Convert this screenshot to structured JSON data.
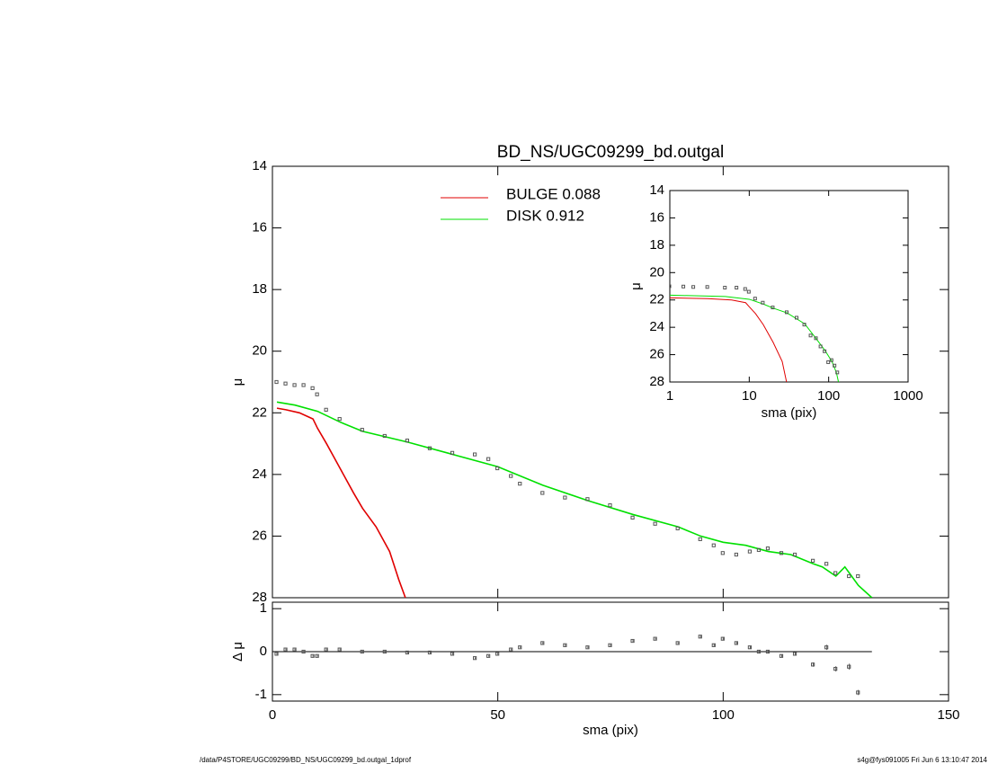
{
  "chart_data": [
    {
      "type": "line",
      "title": "BD_NS/UGC09299_bd.outgal",
      "ylabel": "μ",
      "xlim": [
        0,
        150
      ],
      "xticks": [
        0,
        50,
        100,
        150
      ],
      "xtick_labels": false,
      "ylim": [
        28,
        14
      ],
      "yticks": [
        14,
        16,
        18,
        20,
        22,
        24,
        26,
        28
      ],
      "points": {
        "color": "#555555",
        "x": [
          1,
          3,
          5,
          7,
          9,
          10,
          12,
          15,
          20,
          25,
          30,
          35,
          40,
          45,
          48,
          50,
          53,
          55,
          60,
          65,
          70,
          75,
          80,
          85,
          90,
          95,
          98,
          100,
          103,
          106,
          108,
          110,
          113,
          116,
          120,
          123,
          125,
          128,
          130
        ],
        "values": [
          21.0,
          21.05,
          21.1,
          21.1,
          21.2,
          21.4,
          21.9,
          22.2,
          22.55,
          22.75,
          22.9,
          23.15,
          23.3,
          23.35,
          23.5,
          23.8,
          24.05,
          24.3,
          24.6,
          24.75,
          24.8,
          25.0,
          25.4,
          25.6,
          25.75,
          26.1,
          26.3,
          26.55,
          26.6,
          26.5,
          26.45,
          26.4,
          26.55,
          26.6,
          26.8,
          26.9,
          27.2,
          27.3,
          27.3
        ]
      },
      "series": [
        {
          "name": "BULGE  0.088",
          "color": "#e00000",
          "x": [
            1,
            3,
            6,
            9,
            10,
            12,
            15,
            18,
            20,
            23,
            26,
            28,
            29.5
          ],
          "values": [
            21.85,
            21.9,
            22.0,
            22.2,
            22.5,
            23.0,
            23.8,
            24.6,
            25.1,
            25.7,
            26.5,
            27.4,
            28.0
          ]
        },
        {
          "name": "DISK  0.912",
          "color": "#00e000",
          "x": [
            1,
            5,
            10,
            15,
            20,
            30,
            40,
            50,
            60,
            70,
            80,
            90,
            95,
            100,
            105,
            110,
            115,
            120,
            122,
            125,
            127,
            130,
            133
          ],
          "values": [
            21.65,
            21.75,
            21.95,
            22.3,
            22.6,
            22.95,
            23.35,
            23.75,
            24.35,
            24.85,
            25.3,
            25.7,
            26.0,
            26.2,
            26.3,
            26.5,
            26.6,
            26.9,
            27.0,
            27.3,
            27.0,
            27.6,
            28.0
          ]
        }
      ]
    },
    {
      "type": "residual",
      "xlabel": "sma (pix)",
      "ylabel": "Δ μ",
      "xlim": [
        0,
        150
      ],
      "xticks": [
        0,
        50,
        100,
        150
      ],
      "xtick_labels": true,
      "ylim": [
        -1.15,
        1.15
      ],
      "yticks": [
        -1,
        0,
        1
      ],
      "zero_line": [
        0,
        133
      ],
      "points": {
        "color": "#555555",
        "x": [
          1,
          3,
          5,
          7,
          9,
          10,
          12,
          15,
          20,
          25,
          30,
          35,
          40,
          45,
          48,
          50,
          53,
          55,
          60,
          65,
          70,
          75,
          80,
          85,
          90,
          95,
          98,
          100,
          103,
          106,
          108,
          110,
          113,
          116,
          120,
          123,
          125,
          128,
          130
        ],
        "values": [
          -0.05,
          0.05,
          0.05,
          0.0,
          -0.1,
          -0.1,
          0.05,
          0.05,
          0.0,
          0.0,
          -0.02,
          -0.02,
          -0.05,
          -0.15,
          -0.1,
          -0.05,
          0.05,
          0.1,
          0.2,
          0.15,
          0.1,
          0.15,
          0.25,
          0.3,
          0.2,
          0.35,
          0.15,
          0.3,
          0.2,
          0.1,
          0.0,
          0.0,
          -0.1,
          -0.05,
          -0.3,
          0.1,
          -0.4,
          -0.35,
          -0.95
        ],
        "errors": [
          0.02,
          0.02,
          0.02,
          0.02,
          0.02,
          0.02,
          0.02,
          0.02,
          0.02,
          0.02,
          0.02,
          0.02,
          0.02,
          0.02,
          0.02,
          0.02,
          0.02,
          0.02,
          0.02,
          0.02,
          0.02,
          0.02,
          0.02,
          0.02,
          0.02,
          0.03,
          0.03,
          0.03,
          0.03,
          0.03,
          0.03,
          0.03,
          0.03,
          0.03,
          0.05,
          0.06,
          0.06,
          0.07,
          0.06
        ]
      }
    },
    {
      "type": "line",
      "log_x": true,
      "xlabel": "sma (pix)",
      "ylabel": "μ",
      "xlim": [
        1,
        1000
      ],
      "xticks": [
        1,
        10,
        100,
        1000
      ],
      "xtick_labels": true,
      "ylim": [
        28,
        14
      ],
      "yticks": [
        14,
        16,
        18,
        20,
        22,
        24,
        26,
        28
      ],
      "points": {
        "color": "#555555",
        "x": [
          1,
          1.5,
          2,
          3,
          5,
          7,
          9,
          10,
          12,
          15,
          20,
          30,
          40,
          50,
          60,
          70,
          80,
          90,
          100,
          110,
          120,
          130
        ],
        "values": [
          21.0,
          21.02,
          21.05,
          21.05,
          21.1,
          21.1,
          21.2,
          21.4,
          21.9,
          22.2,
          22.55,
          22.9,
          23.3,
          23.8,
          24.6,
          24.8,
          25.4,
          25.75,
          26.55,
          26.4,
          26.8,
          27.3
        ]
      },
      "series": [
        {
          "color": "#e00000",
          "x": [
            1,
            3,
            6,
            9,
            10,
            12,
            15,
            20,
            26,
            29.5
          ],
          "values": [
            21.85,
            21.9,
            22.0,
            22.2,
            22.5,
            23.0,
            23.8,
            25.1,
            26.5,
            28.0
          ]
        },
        {
          "color": "#00e000",
          "x": [
            1,
            5,
            10,
            15,
            20,
            30,
            50,
            70,
            90,
            110,
            125,
            133
          ],
          "values": [
            21.65,
            21.75,
            21.95,
            22.3,
            22.6,
            22.95,
            23.75,
            24.85,
            25.7,
            26.5,
            27.3,
            28.0
          ]
        }
      ]
    }
  ],
  "footer": {
    "left": "/data/P4STORE/UGC09299/BD_NS/UGC09299_bd.outgal_1dprof",
    "right": "s4g@fys091005  Fri Jun  6 13:10:47 2014"
  }
}
